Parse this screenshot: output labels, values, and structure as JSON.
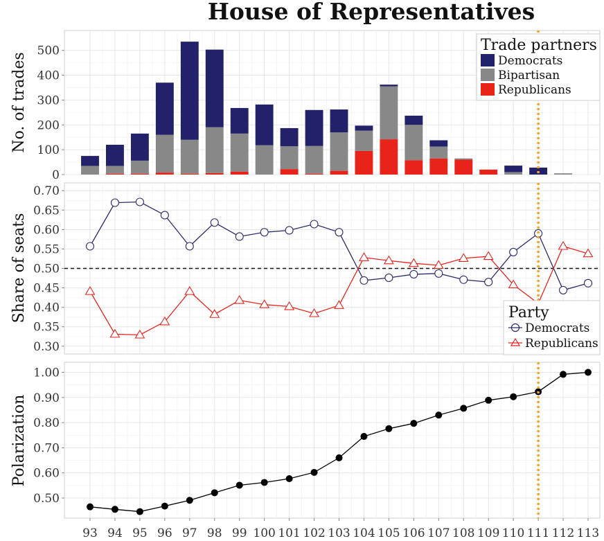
{
  "title": "House of Representatives",
  "colors": {
    "democrats": "#23216a",
    "bipartisan": "#888888",
    "republicans": "#e8231a",
    "dem_line": "#2b2a6e",
    "rep_line": "#e8231a",
    "marker_line": "#f5a623",
    "polar": "#000000"
  },
  "x_labels": [
    "93",
    "94",
    "95",
    "96",
    "97",
    "98",
    "99",
    "100",
    "101",
    "102",
    "103",
    "104",
    "105",
    "106",
    "107",
    "108",
    "109",
    "110",
    "111",
    "112",
    "113"
  ],
  "chart_data": [
    {
      "type": "bar",
      "stacked": true,
      "ylabel": "No. of trades",
      "ylim": [
        0,
        580
      ],
      "yticks": [
        "0",
        "100",
        "200",
        "300",
        "400",
        "500"
      ],
      "legend": {
        "title": "Trade partners",
        "position": "top-right",
        "entries": [
          "Democrats",
          "Bipartisan",
          "Republicans"
        ]
      },
      "categories": [
        "93",
        "94",
        "95",
        "96",
        "97",
        "98",
        "99",
        "100",
        "101",
        "102",
        "103",
        "104",
        "105",
        "106",
        "107",
        "108",
        "109",
        "110",
        "111",
        "112",
        "113"
      ],
      "series": [
        {
          "name": "Republicans",
          "values": [
            0,
            3,
            3,
            8,
            3,
            6,
            12,
            0,
            22,
            3,
            15,
            95,
            142,
            58,
            65,
            60,
            20,
            0,
            0,
            0,
            0
          ]
        },
        {
          "name": "Bipartisan",
          "values": [
            35,
            32,
            53,
            152,
            137,
            185,
            153,
            118,
            92,
            112,
            155,
            82,
            213,
            142,
            48,
            5,
            0,
            10,
            0,
            5,
            0
          ]
        },
        {
          "name": "Democrats",
          "values": [
            40,
            85,
            109,
            210,
            395,
            312,
            103,
            164,
            73,
            145,
            92,
            20,
            7,
            37,
            25,
            0,
            0,
            26,
            28,
            0,
            0
          ]
        }
      ],
      "vline_at": "111"
    },
    {
      "type": "line",
      "ylabel": "Share of seats",
      "ylim": [
        0.28,
        0.72
      ],
      "yticks": [
        "0.30",
        "0.35",
        "0.40",
        "0.45",
        "0.50",
        "0.55",
        "0.60",
        "0.65",
        "0.70"
      ],
      "hline": 0.5,
      "legend": {
        "title": "Party",
        "position": "bottom-right",
        "entries": [
          "Democrats",
          "Republicans"
        ]
      },
      "x": [
        "93",
        "94",
        "95",
        "96",
        "97",
        "98",
        "99",
        "100",
        "101",
        "102",
        "103",
        "104",
        "105",
        "106",
        "107",
        "108",
        "109",
        "110",
        "111",
        "112",
        "113"
      ],
      "series": [
        {
          "name": "Democrats",
          "marker": "circle",
          "values": [
            0.557,
            0.669,
            0.671,
            0.637,
            0.557,
            0.618,
            0.582,
            0.593,
            0.598,
            0.614,
            0.593,
            0.469,
            0.476,
            0.485,
            0.487,
            0.471,
            0.465,
            0.542,
            0.59,
            0.444,
            0.462
          ]
        },
        {
          "name": "Republicans",
          "marker": "triangle",
          "values": [
            0.441,
            0.331,
            0.329,
            0.363,
            0.441,
            0.382,
            0.418,
            0.407,
            0.402,
            0.384,
            0.405,
            0.528,
            0.52,
            0.513,
            0.508,
            0.526,
            0.531,
            0.458,
            0.41,
            0.557,
            0.538
          ]
        }
      ],
      "vline_at": "111"
    },
    {
      "type": "line",
      "ylabel": "Polarization",
      "ylim": [
        0.42,
        1.04
      ],
      "yticks": [
        "0.50",
        "0.60",
        "0.70",
        "0.80",
        "0.90",
        "1.00"
      ],
      "x": [
        "93",
        "94",
        "95",
        "96",
        "97",
        "98",
        "99",
        "100",
        "101",
        "102",
        "103",
        "104",
        "105",
        "106",
        "107",
        "108",
        "109",
        "110",
        "111",
        "112",
        "113"
      ],
      "series": [
        {
          "values": [
            0.465,
            0.455,
            0.446,
            0.468,
            0.491,
            0.521,
            0.551,
            0.562,
            0.577,
            0.602,
            0.66,
            0.745,
            0.776,
            0.797,
            0.83,
            0.857,
            0.889,
            0.903,
            0.923,
            0.992,
            1.0
          ]
        }
      ],
      "vline_at": "111"
    }
  ]
}
